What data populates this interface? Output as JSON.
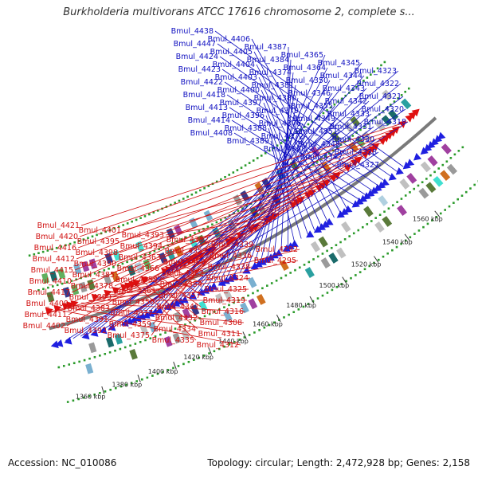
{
  "title": "Burkholderia multivorans ATCC 17616 chromosome 2, complete s...",
  "accession": "Accession: NC_010086",
  "summary": "Topology: circular; Length: 2,472,928 bp; Genes: 2,158",
  "colors": {
    "forward": "#1f1fe0",
    "reverse": "#e01010",
    "backbone": "#7a7a7a",
    "dots": "#2a9a2a"
  },
  "ticks": [
    "1560 kbp",
    "1540 kbp",
    "1520 kbp",
    "1500 kbp",
    "1480 kbp",
    "1460 kbp",
    "1440 kbp",
    "1420 kbp",
    "1400 kbp",
    "1380 kbp",
    "1360 kbp"
  ],
  "forward_labels": [
    "Bmul_4438",
    "Bmul_4447",
    "Bmul_4424",
    "Bmul_4423",
    "Bmul_4422",
    "Bmul_4418",
    "Bmul_4413",
    "Bmul_4414",
    "Bmul_4408",
    "Bmul_4406",
    "Bmul_4405",
    "Bmul_4404",
    "Bmul_4403",
    "Bmul_4400",
    "Bmul_4397",
    "Bmul_4396",
    "Bmul_4388",
    "Bmul_4389",
    "Bmul_4387",
    "Bmul_4384",
    "Bmul_4374",
    "Bmul_4381",
    "Bmul_4380",
    "Bmul_4379",
    "Bmul_4376",
    "Bmul_4372",
    "Bmul_4368",
    "Bmul_4365",
    "Bmul_4364",
    "Bmul_4350",
    "Bmul_4346",
    "Bmul_4355",
    "Bmul_4349",
    "Bmul_4351",
    "Bmul_4348",
    "Bmul_4347",
    "Bmul_4345",
    "Bmul_4344",
    "Bmul_4343",
    "Bmul_4342",
    "Bmul_4333",
    "Bmul_4331",
    "Bmul_4330",
    "Bmul_4328",
    "Bmul_4327",
    "Bmul_4323",
    "Bmul_4322",
    "Bmul_4321",
    "Bmul_4320",
    "Bmul_4318"
  ],
  "reverse_labels": [
    "Bmul_4421",
    "Bmul_4420",
    "Bmul_4416",
    "Bmul_4412",
    "Bmul_4415",
    "Bmul_4410",
    "Bmul_4417",
    "Bmul_4409",
    "Bmul_4411",
    "Bmul_4402",
    "Bmul_4401",
    "Bmul_4395",
    "Bmul_4398",
    "Bmul_4390",
    "Bmul_4385",
    "Bmul_4378",
    "Bmul_4399",
    "Bmul_4383",
    "Bmul_4391",
    "Bmul_4392",
    "Bmul_4393",
    "Bmul_4394",
    "Bmul_4363",
    "Bmul_4366",
    "Bmul_4358",
    "Bmul_4361",
    "Bmul_4356",
    "Bmul_4377",
    "Bmul_4359",
    "Bmul_4375",
    "Bmul_4352",
    "Bmul_4353",
    "Bmul_4360",
    "Bmul_4362",
    "Bmul_4354",
    "Bmul_4357",
    "Bmul_4341",
    "Bmul_4332",
    "Bmul_4334",
    "Bmul_4335",
    "Bmul_4339",
    "Bmul_4336",
    "Bmul_4338",
    "Bmul_4324",
    "Bmul_4325",
    "Bmul_4319",
    "Bmul_4316",
    "Bmul_4308",
    "Bmul_4311",
    "Bmul_4312",
    "Bmul_4292",
    "Bmul_4295"
  ]
}
